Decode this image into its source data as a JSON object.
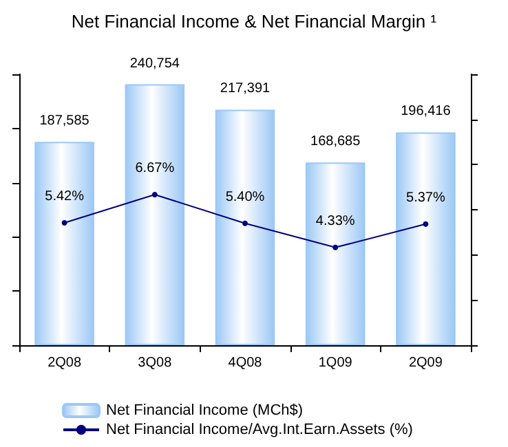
{
  "chart_data": {
    "type": "bar",
    "title": "Net Financial Income & Net Financial Margin ¹",
    "categories": [
      "2Q08",
      "3Q08",
      "4Q08",
      "1Q09",
      "2Q09"
    ],
    "series": [
      {
        "name": "Net Financial Income (MCh$)",
        "color": "#9cc8f5",
        "values": [
          187585,
          240754,
          217391,
          168685,
          196416
        ],
        "value_labels": [
          "187,585",
          "240,754",
          "217,391",
          "168,685",
          "196,416"
        ]
      },
      {
        "name": "Net Financial Income/Avg.Int.Earn.Assets (%)",
        "type": "line",
        "axis": "y2",
        "color": "#000080",
        "marker": "circle",
        "values": [
          5.42,
          6.67,
          5.4,
          4.33,
          5.37
        ],
        "value_labels": [
          "5.42%",
          "6.67%",
          "5.40%",
          "4.33%",
          "5.37%"
        ]
      }
    ],
    "ylim": [
      0,
      250000
    ],
    "yticks": [
      {
        "value": 0,
        "label": null
      },
      {
        "value": 50000,
        "label": null
      },
      {
        "value": 100000,
        "label": null
      },
      {
        "value": 150000,
        "label": null
      },
      {
        "value": 200000,
        "label": null
      },
      {
        "value": 250000,
        "label": null
      }
    ],
    "y2lim": [
      0,
      12
    ],
    "y2ticks": [
      {
        "value": 0,
        "label": null
      },
      {
        "value": 2,
        "label": null
      },
      {
        "value": 4,
        "label": null
      },
      {
        "value": 6,
        "label": null
      },
      {
        "value": 8,
        "label": null
      },
      {
        "value": 10,
        "label": null
      },
      {
        "value": 12,
        "label": null
      }
    ],
    "tick_labels": "x",
    "grid": false,
    "legend": "bottom"
  }
}
